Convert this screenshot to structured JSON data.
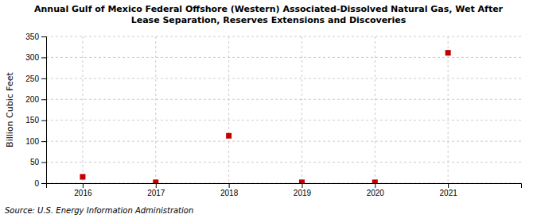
{
  "chart_data": {
    "type": "scatter",
    "title": "Annual Gulf of Mexico Federal Offshore (Western) Associated-Dissolved Natural Gas, Wet After\nLease Separation, Reserves Extensions and Discoveries",
    "y_label": "Billion Cubic Feet",
    "annotations": [
      "Source: U.S. Energy Information Administration"
    ],
    "x": [
      2016,
      2017,
      2018,
      2019,
      2020,
      2021
    ],
    "values": [
      15.0,
      2.0,
      113.0,
      2.0,
      2.0,
      311.0
    ],
    "color": "#c00000",
    "marker": "square",
    "xlim": [
      2015.5,
      2022.0
    ],
    "xticks": [
      2016,
      2017,
      2018,
      2019,
      2020,
      2021
    ],
    "ylim": [
      0,
      350
    ],
    "yticks": [
      0,
      50,
      100,
      150,
      200,
      250,
      300,
      350
    ],
    "grid": true
  }
}
